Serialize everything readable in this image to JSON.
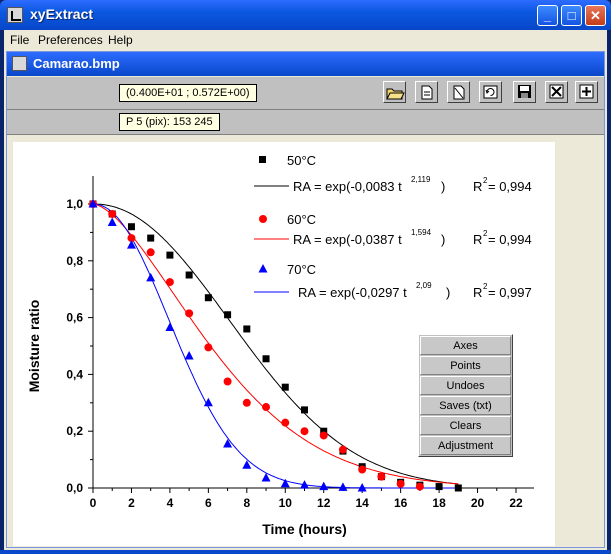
{
  "window": {
    "title": "xyExtract",
    "buttons": {
      "minimize": "_",
      "maximize": "□",
      "close": "✕"
    }
  },
  "menu": {
    "items": [
      "File",
      "Preferences",
      "Help"
    ]
  },
  "document": {
    "title": "Camarao.bmp"
  },
  "toolbar": {
    "coords_text": "(0.400E+01 ; 0.572E+00)",
    "point_text": "P   5 (pix):   153   245",
    "icons": [
      "open-folder-icon",
      "new-document-icon",
      "blank-page-icon",
      "refresh-icon",
      "save-disk-icon",
      "delete-x-icon",
      "add-point-icon"
    ]
  },
  "panel": {
    "buttons": [
      "Axes",
      "Points",
      "Undoes",
      "Saves (txt)",
      "Clears",
      "Adjustment"
    ]
  },
  "colors": {
    "s50": "#000000",
    "s60": "#ff0000",
    "s70": "#0000ff"
  },
  "chart_data": {
    "type": "scatter",
    "xlabel": "Time (hours)",
    "ylabel": "Moisture ratio",
    "xlim": [
      0,
      22
    ],
    "ylim": [
      0,
      1.1
    ],
    "xticks": [
      "0",
      "2",
      "4",
      "6",
      "8",
      "10",
      "12",
      "14",
      "16",
      "18",
      "20",
      "22"
    ],
    "yticks": [
      "0,0",
      "0,2",
      "0,4",
      "0,6",
      "0,8",
      "1,0"
    ],
    "series": [
      {
        "name": "50°C",
        "marker": "square",
        "color": "#000000",
        "x": [
          0,
          1,
          2,
          3,
          4,
          5,
          6,
          7,
          8,
          9,
          10,
          11,
          12,
          13,
          14,
          15,
          16,
          17,
          18,
          19
        ],
        "y": [
          1.0,
          0.965,
          0.92,
          0.88,
          0.82,
          0.75,
          0.67,
          0.61,
          0.56,
          0.455,
          0.355,
          0.275,
          0.2,
          0.13,
          0.075,
          0.04,
          0.02,
          0.01,
          0.005,
          0.0
        ],
        "fit": {
          "equation": "RA = exp(-0,0083 t",
          "exponent": "2,119",
          "close": ")",
          "r2_label": "R",
          "r2_sup": "2",
          "r2_value": " = 0,994",
          "k": 0.0083,
          "n": 2.119
        }
      },
      {
        "name": "60°C",
        "marker": "circle",
        "color": "#ff0000",
        "x": [
          0,
          1,
          2,
          3,
          4,
          5,
          6,
          7,
          8,
          9,
          10,
          11,
          12,
          13,
          14,
          15,
          16,
          17
        ],
        "y": [
          1.0,
          0.965,
          0.88,
          0.83,
          0.725,
          0.615,
          0.495,
          0.375,
          0.3,
          0.285,
          0.23,
          0.2,
          0.185,
          0.135,
          0.065,
          0.04,
          0.015,
          0.005
        ],
        "fit": {
          "equation": "RA = exp(-0,0387 t",
          "exponent": "1,594",
          "close": ")",
          "r2_label": "R",
          "r2_sup": "2",
          "r2_value": " = 0,994",
          "k": 0.0387,
          "n": 1.594
        }
      },
      {
        "name": "70°C",
        "marker": "triangle",
        "color": "#0000ff",
        "x": [
          0,
          1,
          2,
          3,
          4,
          5,
          6,
          7,
          8,
          9,
          10,
          11,
          12,
          13,
          14
        ],
        "y": [
          1.0,
          0.935,
          0.855,
          0.74,
          0.565,
          0.465,
          0.3,
          0.155,
          0.08,
          0.035,
          0.015,
          0.01,
          0.005,
          0.002,
          0.0
        ],
        "fit": {
          "equation": "RA = exp(-0,0297 t",
          "exponent": "2,09",
          "close": ")",
          "r2_label": "R",
          "r2_sup": "2",
          "r2_value": " = 0,997",
          "k": 0.0297,
          "n": 2.09
        }
      }
    ]
  }
}
